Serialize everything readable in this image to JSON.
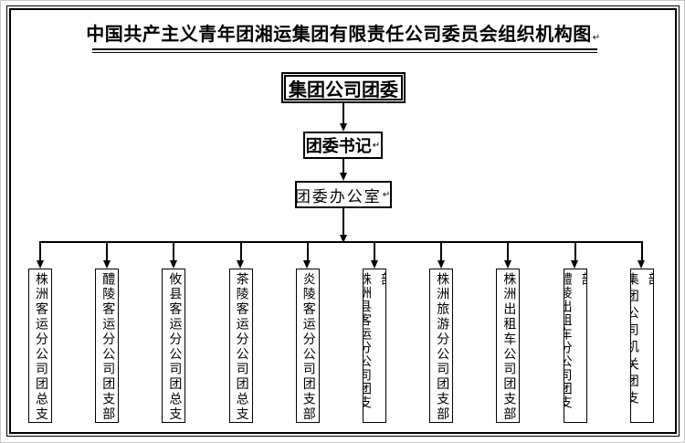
{
  "page": {
    "title": "中国共产主义青年团湘运集团有限责任公司委员会组织机构图",
    "return_mark": "↵"
  },
  "nodes": {
    "top": {
      "label": "集团公司团委"
    },
    "secretary": {
      "label": "团委书记"
    },
    "office": {
      "label": "团委办公室"
    }
  },
  "branches": [
    {
      "label": "株洲客运分公司团总支"
    },
    {
      "label": "醴陵客运分公司团支部"
    },
    {
      "label": "攸县客运分公司团总支"
    },
    {
      "label": "茶陵客运分公司团总支"
    },
    {
      "label": "炎陵客运分公司团支部"
    },
    {
      "label": "株洲县客运分公司团支部"
    },
    {
      "label": "株洲旅游分公司团支部"
    },
    {
      "label": "株洲出租车公司团支部"
    },
    {
      "label": "醴陵出租车分公司团支部"
    },
    {
      "label": "集团公司机关团支部"
    }
  ],
  "colors": {
    "line": "#000000",
    "background": "#ffffff",
    "border": "#000000"
  }
}
